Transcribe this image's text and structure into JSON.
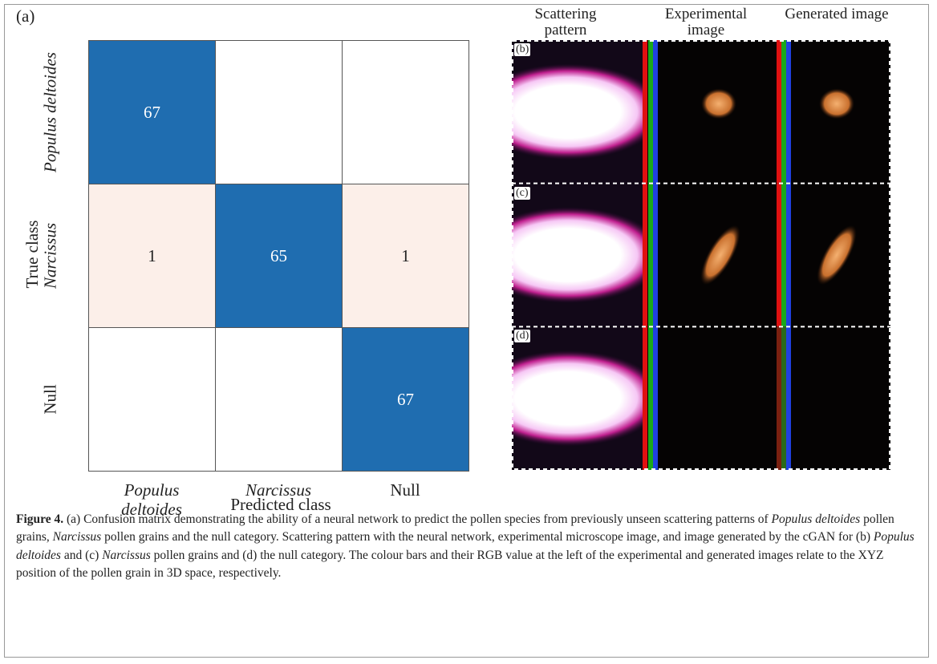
{
  "panel_a": {
    "label": "(a)",
    "matrix": {
      "rows": [
        [
          67,
          null,
          null
        ],
        [
          1,
          65,
          1
        ],
        [
          null,
          null,
          67
        ]
      ],
      "row_labels": [
        {
          "italic": "Populus deltoides"
        },
        {
          "italic": "Narcissus"
        },
        {
          "plain": "Null"
        }
      ],
      "col_labels": [
        {
          "italic": "Populus deltoides"
        },
        {
          "italic": "Narcissus"
        },
        {
          "plain": "Null"
        }
      ],
      "x_label": "Predicted class",
      "y_label": "True class",
      "colors": {
        "high": "#1f6db0",
        "low": "#fcefe9",
        "empty": "#ffffff"
      }
    }
  },
  "panel_right": {
    "column_headers": [
      "Scattering pattern",
      "Experimental image",
      "Generated image"
    ],
    "row_labels": [
      "(b)",
      "(c)",
      "(d)"
    ]
  },
  "caption": {
    "label": "Figure 4.",
    "runs": [
      {
        "plain": " (a) Confusion matrix demonstrating the ability of a neural network to predict the pollen species from previously unseen scattering patterns of "
      },
      {
        "italic": "Populus deltoides"
      },
      {
        "plain": " pollen grains, "
      },
      {
        "italic": "Narcissus"
      },
      {
        "plain": " pollen grains and the null category. Scattering pattern with the neural network, experimental microscope image, and image generated by the cGAN for (b) "
      },
      {
        "italic": "Populus deltoides"
      },
      {
        "plain": " and (c) "
      },
      {
        "italic": "Narcissus"
      },
      {
        "plain": " pollen grains and (d) the null category. The colour bars and their RGB value at the left of the experimental and generated images relate to the XYZ position of the pollen grain in 3D space, respectively."
      }
    ]
  }
}
